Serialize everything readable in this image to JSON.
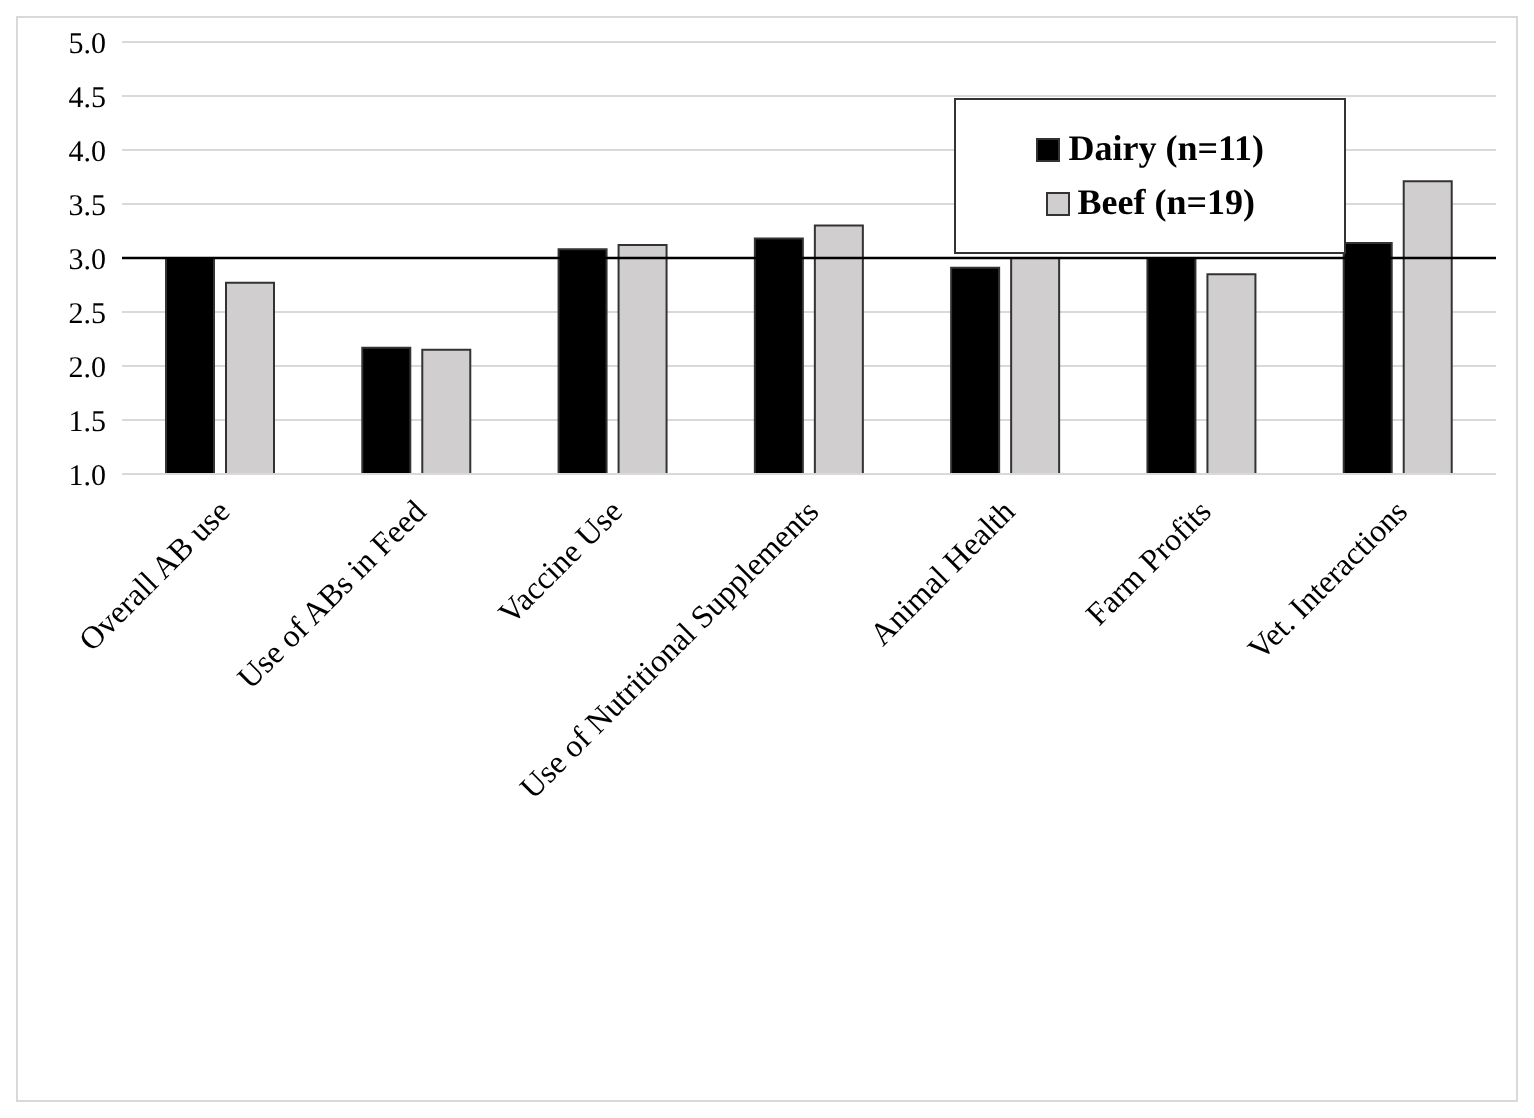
{
  "chart_data": {
    "type": "bar",
    "categories": [
      "Overall AB use",
      "Use of ABs in Feed",
      "Vaccine Use",
      "Use of Nutritional Supplements",
      "Animal Health",
      "Farm Profits",
      "Vet. Interactions"
    ],
    "series": [
      {
        "name": "Dairy (n=11)",
        "color": "#000000",
        "values": [
          3.0,
          2.17,
          3.08,
          3.18,
          2.91,
          3.0,
          3.14
        ]
      },
      {
        "name": "Beef (n=19)",
        "color": "#d0cece",
        "values": [
          2.77,
          2.15,
          3.12,
          3.3,
          3.0,
          2.85,
          3.71
        ]
      }
    ],
    "ylim": [
      1.0,
      5.0
    ],
    "yticks": [
      {
        "value": 1,
        "label": "1.0"
      },
      {
        "value": 1.5,
        "label": "1.5"
      },
      {
        "value": 2,
        "label": "2.0"
      },
      {
        "value": 2.5,
        "label": "2.5"
      },
      {
        "value": 3,
        "label": "3.0"
      },
      {
        "value": 3.5,
        "label": "3.5"
      },
      {
        "value": 4,
        "label": "4.0"
      },
      {
        "value": 4.5,
        "label": "4.5"
      },
      {
        "value": 5,
        "label": "5.0"
      }
    ],
    "ref_lines": [
      {
        "axis": "y",
        "value": 3.0,
        "color": "#000000"
      }
    ],
    "grid": "y",
    "legend": "top right"
  }
}
